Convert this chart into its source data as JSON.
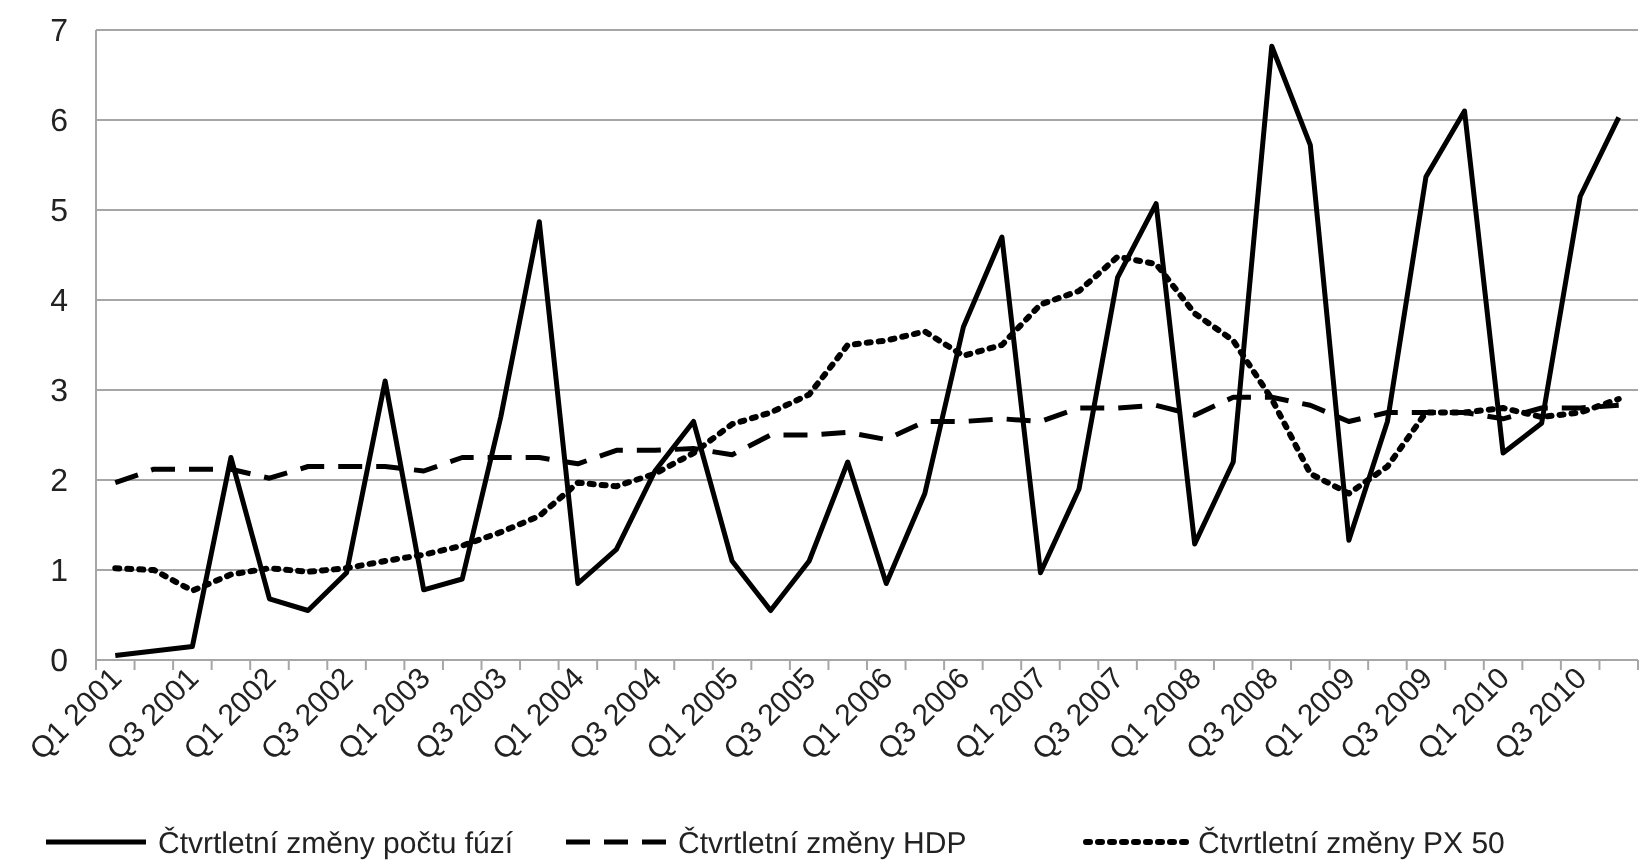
{
  "chart_data": {
    "type": "line",
    "categories": [
      "Q1 2001",
      null,
      "Q3 2001",
      null,
      "Q1 2002",
      null,
      "Q3 2002",
      null,
      "Q1 2003",
      null,
      "Q3 2003",
      null,
      "Q1 2004",
      null,
      "Q3 2004",
      null,
      "Q1 2005",
      null,
      "Q3 2005",
      null,
      "Q1 2006",
      null,
      "Q3 2006",
      null,
      "Q1 2007",
      null,
      "Q3 2007",
      null,
      "Q1 2008",
      null,
      "Q3 2008",
      null,
      "Q1 2009",
      null,
      "Q3 2009",
      null,
      "Q1 2010",
      null,
      "Q3 2010",
      null
    ],
    "series": [
      {
        "name": "Čtvrtletní změny počtu fúzí",
        "color": "#000000",
        "line_style": "solid",
        "values": [
          0.05,
          0.1,
          0.15,
          2.25,
          0.68,
          0.55,
          0.97,
          3.1,
          0.78,
          0.9,
          2.7,
          4.87,
          0.85,
          1.23,
          2.1,
          2.65,
          1.1,
          0.55,
          1.1,
          2.2,
          0.85,
          1.85,
          3.7,
          4.7,
          0.97,
          1.9,
          4.25,
          5.07,
          1.29,
          2.2,
          6.82,
          5.72,
          1.33,
          2.65,
          5.37,
          6.1,
          2.3,
          2.63,
          5.15,
          6.03
        ]
      },
      {
        "name": "Čtvrtletní změny HDP",
        "color": "#000000",
        "line_style": "dashed",
        "values": [
          1.97,
          2.12,
          2.12,
          2.12,
          2.02,
          2.15,
          2.15,
          2.15,
          2.1,
          2.25,
          2.25,
          2.25,
          2.18,
          2.33,
          2.33,
          2.35,
          2.28,
          2.5,
          2.5,
          2.53,
          2.45,
          2.65,
          2.65,
          2.68,
          2.65,
          2.8,
          2.8,
          2.83,
          2.72,
          2.92,
          2.92,
          2.83,
          2.65,
          2.75,
          2.75,
          2.75,
          2.68,
          2.8,
          2.8,
          2.83
        ]
      },
      {
        "name": "Čtvrtletní změny PX 50",
        "color": "#000000",
        "line_style": "dotted",
        "values": [
          1.02,
          1.0,
          0.77,
          0.95,
          1.02,
          0.98,
          1.02,
          1.1,
          1.17,
          1.27,
          1.42,
          1.6,
          1.97,
          1.93,
          2.07,
          2.3,
          2.62,
          2.75,
          2.95,
          3.5,
          3.55,
          3.65,
          3.38,
          3.5,
          3.95,
          4.1,
          4.48,
          4.4,
          3.85,
          3.55,
          2.9,
          2.07,
          1.85,
          2.15,
          2.75,
          2.75,
          2.8,
          2.7,
          2.75,
          2.9
        ]
      }
    ],
    "ylim": [
      0,
      7
    ],
    "yticks": [
      0,
      1,
      2,
      3,
      4,
      5,
      6,
      7
    ],
    "grid": "y",
    "legend": "bottom"
  }
}
